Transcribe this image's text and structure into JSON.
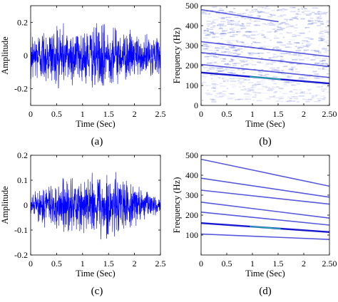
{
  "chart_data": [
    {
      "type": "line",
      "panel": "(a)",
      "xlabel": "Time (Sec)",
      "ylabel": "Amplitude",
      "xlim": [
        0,
        2.5
      ],
      "ylim": [
        -0.3,
        0.3
      ],
      "xticks": [
        "0",
        "0.5",
        "1",
        "1.5",
        "2",
        "2.5"
      ],
      "yticks": [
        "-0.2",
        "0",
        "0.2"
      ],
      "xtick_values": [
        0,
        0.5,
        1,
        1.5,
        2,
        2.5
      ],
      "ytick_values": [
        -0.2,
        0,
        0.2
      ],
      "series_color": "#0000ff",
      "envelope": {
        "x": [
          0,
          0.25,
          0.5,
          0.75,
          1.0,
          1.25,
          1.5,
          1.75,
          2.0,
          2.25,
          2.5
        ],
        "amplitude": [
          0.16,
          0.19,
          0.2,
          0.2,
          0.19,
          0.2,
          0.19,
          0.17,
          0.15,
          0.13,
          0.11
        ]
      }
    },
    {
      "type": "heatmap",
      "panel": "(b)",
      "xlabel": "Time (Sec)",
      "ylabel": "Frequency (Hz)",
      "xlim": [
        0,
        2.5
      ],
      "ylim": [
        0,
        500
      ],
      "xticks": [
        "0",
        "0.5",
        "1",
        "1.5",
        "2",
        "2.50"
      ],
      "yticks": [
        "0",
        "100",
        "200",
        "300",
        "400",
        "500"
      ],
      "xtick_values": [
        0,
        0.5,
        1,
        1.5,
        2,
        2.5
      ],
      "ytick_values": [
        0,
        100,
        200,
        300,
        400,
        500
      ],
      "ridges": [
        {
          "t": [
            0,
            2.5
          ],
          "f": [
            165,
            110
          ]
        },
        {
          "t": [
            0,
            2.5
          ],
          "f": [
            205,
            140
          ]
        },
        {
          "t": [
            0,
            2.5
          ],
          "f": [
            265,
            195
          ]
        },
        {
          "t": [
            0,
            2.5
          ],
          "f": [
            320,
            245
          ]
        },
        {
          "t": [
            0,
            1.5
          ],
          "f": [
            480,
            420
          ]
        }
      ],
      "color_low": "#ffffff",
      "color_mid": "#0000cc",
      "color_high": "#20c0a0"
    },
    {
      "type": "line",
      "panel": "(c)",
      "xlabel": "Time (Sec)",
      "ylabel": "Amplitude",
      "xlim": [
        0,
        2.5
      ],
      "ylim": [
        -0.2,
        0.2
      ],
      "xticks": [
        "0",
        "0.5",
        "1",
        "1.5",
        "2",
        "2.5"
      ],
      "yticks": [
        "-0.2",
        "-0.1",
        "0",
        "0.1",
        "0.2"
      ],
      "xtick_values": [
        0,
        0.5,
        1,
        1.5,
        2,
        2.5
      ],
      "ytick_values": [
        -0.2,
        -0.1,
        0,
        0.1,
        0.2
      ],
      "series_color": "#0000ff",
      "envelope": {
        "x": [
          0,
          0.25,
          0.5,
          0.75,
          1.0,
          1.25,
          1.5,
          1.75,
          2.0,
          2.25,
          2.5
        ],
        "amplitude": [
          0.04,
          0.09,
          0.11,
          0.11,
          0.12,
          0.16,
          0.15,
          0.12,
          0.09,
          0.06,
          0.03
        ]
      }
    },
    {
      "type": "heatmap",
      "panel": "(d)",
      "xlabel": "Time (Sec)",
      "ylabel": "Frequency (Hz)",
      "xlim": [
        0,
        2.5
      ],
      "ylim": [
        0,
        500
      ],
      "xticks": [
        "0",
        "0.5",
        "1",
        "1.5",
        "2",
        "2.50"
      ],
      "yticks": [
        "100",
        "200",
        "300",
        "400",
        "500"
      ],
      "xtick_values": [
        0,
        0.5,
        1,
        1.5,
        2,
        2.5
      ],
      "ytick_values": [
        100,
        200,
        300,
        400,
        500
      ],
      "ridges": [
        {
          "t": [
            0,
            2.5
          ],
          "f": [
            105,
            78
          ]
        },
        {
          "t": [
            0,
            2.5
          ],
          "f": [
            160,
            115
          ]
        },
        {
          "t": [
            0,
            2.5
          ],
          "f": [
            215,
            150
          ]
        },
        {
          "t": [
            0,
            2.5
          ],
          "f": [
            265,
            185
          ]
        },
        {
          "t": [
            0,
            2.5
          ],
          "f": [
            325,
            255
          ]
        },
        {
          "t": [
            0,
            2.5
          ],
          "f": [
            385,
            290
          ]
        },
        {
          "t": [
            0,
            2.5
          ],
          "f": [
            480,
            345
          ]
        }
      ],
      "color_low": "#ffffff",
      "color_mid": "#0000cc",
      "color_high": "#20c0a0"
    }
  ]
}
